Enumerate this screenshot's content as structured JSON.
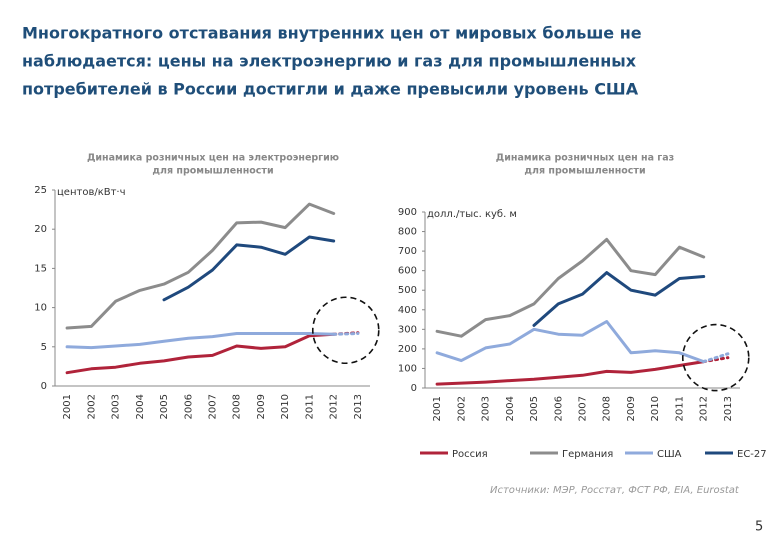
{
  "title": [
    "Многократного отставания внутренних цен от мировых больше не",
    "наблюдается: цены на электроэнергию и газ для промышленных",
    "потребителей в России достигли и даже превысили уровень США"
  ],
  "source": "Источники: МЭР, Росстат, ФСТ РФ, EIA, Eurostat",
  "page_number": "5",
  "chart_data": [
    {
      "type": "line",
      "title": [
        "Динамика розничных цен на электроэнергию",
        "для промышленности"
      ],
      "y_label": "центов/кВт·ч",
      "categories": [
        "2001",
        "2002",
        "2003",
        "2004",
        "2005",
        "2006",
        "2007",
        "2008",
        "2009",
        "2010",
        "2011",
        "2012",
        "2013"
      ],
      "ylim": [
        0,
        25
      ],
      "yticks": [
        0,
        5,
        10,
        15,
        20,
        25
      ],
      "forecast_start": 11,
      "series": [
        {
          "name": "Россия",
          "color": "#b0233a",
          "values": [
            1.7,
            2.2,
            2.4,
            2.9,
            3.2,
            3.7,
            3.9,
            5.1,
            4.8,
            5.0,
            6.4,
            6.6,
            6.8
          ]
        },
        {
          "name": "Германия",
          "color": "#8c8c8c",
          "values": [
            7.4,
            7.6,
            10.8,
            12.2,
            13.0,
            14.5,
            17.3,
            20.8,
            20.9,
            20.2,
            23.2,
            22.0,
            null
          ]
        },
        {
          "name": "США",
          "color": "#8faadc",
          "values": [
            5.0,
            4.9,
            5.1,
            5.3,
            5.7,
            6.1,
            6.3,
            6.7,
            6.7,
            6.7,
            6.7,
            6.6,
            6.7
          ]
        },
        {
          "name": "ЕС-27",
          "color": "#1f497d",
          "values": [
            null,
            null,
            null,
            null,
            11.0,
            12.6,
            14.8,
            18.0,
            17.7,
            16.8,
            19.0,
            18.5,
            null
          ]
        }
      ]
    },
    {
      "type": "line",
      "title": [
        "Динамика розничных цен на газ",
        "для промышленности"
      ],
      "y_label": "долл./тыс. куб. м",
      "categories": [
        "2001",
        "2002",
        "2003",
        "2004",
        "2005",
        "2006",
        "2007",
        "2008",
        "2009",
        "2010",
        "2011",
        "2012",
        "2013"
      ],
      "ylim": [
        0,
        900
      ],
      "yticks": [
        0,
        100,
        200,
        300,
        400,
        500,
        600,
        700,
        800,
        900
      ],
      "forecast_start": 11,
      "series": [
        {
          "color": "#b0233a",
          "values": [
            20,
            25,
            30,
            38,
            45,
            55,
            65,
            85,
            80,
            95,
            115,
            135,
            155
          ]
        },
        {
          "color": "#8c8c8c",
          "values": [
            290,
            265,
            350,
            370,
            430,
            560,
            650,
            760,
            600,
            580,
            720,
            670,
            null
          ]
        },
        {
          "color": "#8faadc",
          "values": [
            180,
            140,
            205,
            225,
            300,
            275,
            270,
            340,
            180,
            190,
            180,
            135,
            175
          ]
        },
        {
          "color": "#1f497d",
          "values": [
            null,
            null,
            null,
            null,
            320,
            430,
            480,
            590,
            500,
            475,
            560,
            570,
            null
          ]
        }
      ]
    }
  ]
}
